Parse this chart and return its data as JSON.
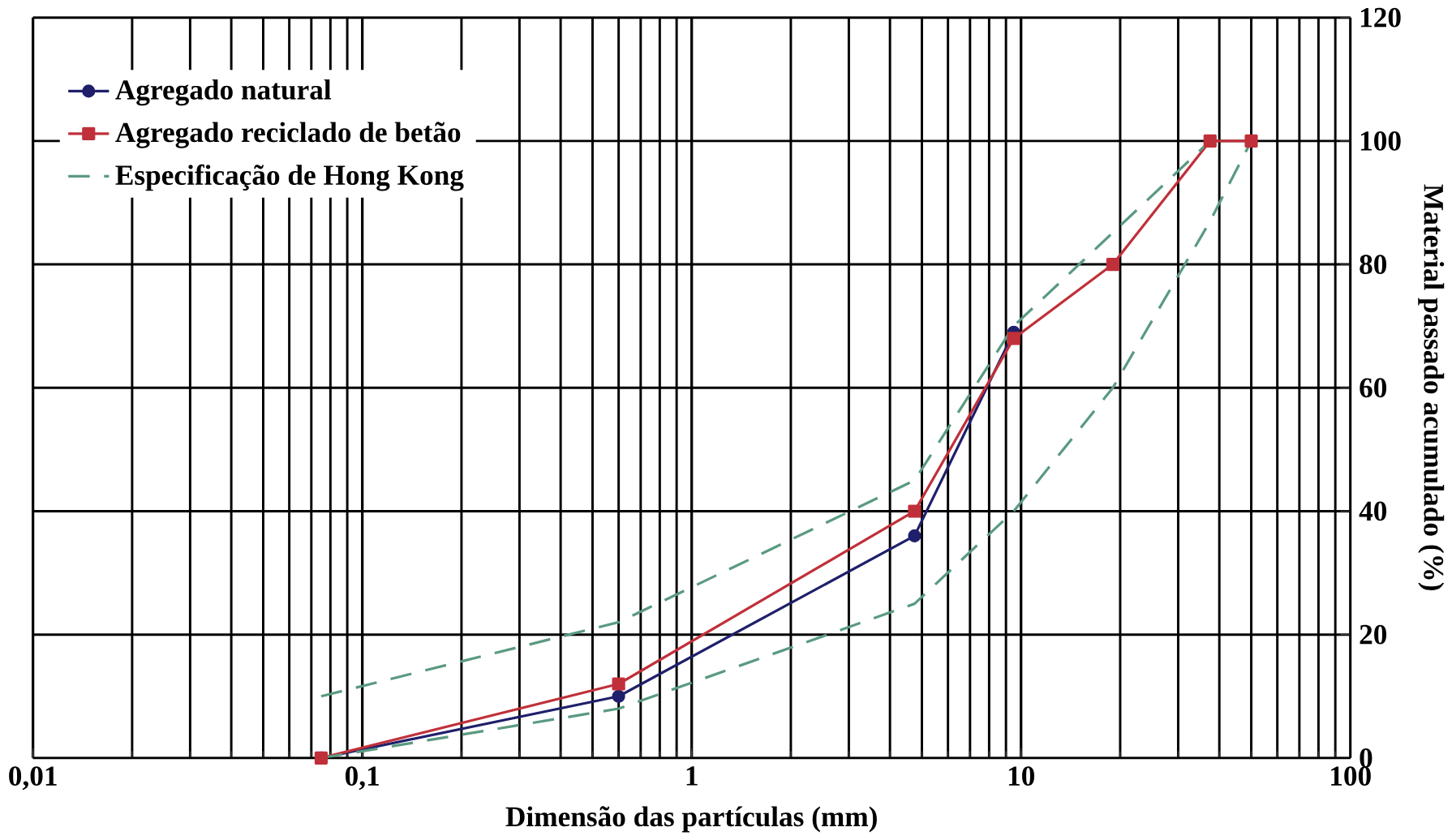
{
  "chart_data": {
    "type": "line",
    "xlabel": "Dimensão das partículas (mm)",
    "ylabel": "Material passado acumulado (%)",
    "log": "x",
    "grid": true,
    "legend": "top left",
    "xlim": [
      0.01,
      100
    ],
    "xticks": [
      {
        "value": 0.01,
        "label": "0,01"
      },
      {
        "value": 0.1,
        "label": "0,1"
      },
      1,
      10,
      100
    ],
    "ylim": [
      0,
      120
    ],
    "yticks": [
      0,
      20,
      40,
      60,
      80,
      100,
      120
    ],
    "series": [
      {
        "name": "Agregado natural",
        "color": "#1f1f6b",
        "marker": "circle",
        "line_style": "solid",
        "x": [
          0.075,
          0.6,
          4.75,
          9.5
        ],
        "values": [
          0,
          10,
          36,
          69
        ]
      },
      {
        "name": "Agregado reciclado de betão",
        "color": "#c0303a",
        "marker": "square",
        "line_style": "solid",
        "x": [
          0.075,
          0.6,
          4.75,
          9.5,
          19,
          37.5,
          50
        ],
        "values": [
          0,
          12,
          40,
          68,
          80,
          100,
          100
        ]
      },
      {
        "name": "Especificação de Hong Kong",
        "color": "#5a9a80",
        "marker": "none",
        "line_style": "dashed",
        "x": [
          0.075,
          0.6,
          4.75,
          9.5,
          37.5
        ],
        "values": [
          10,
          22,
          45,
          70,
          100
        ]
      },
      {
        "color": "#5a9a80",
        "marker": "none",
        "line_style": "dashed",
        "x": [
          0.075,
          0.6,
          4.75,
          9.5,
          19,
          37.5,
          50
        ],
        "values": [
          0,
          8,
          25,
          40,
          60,
          87,
          100
        ]
      }
    ]
  }
}
